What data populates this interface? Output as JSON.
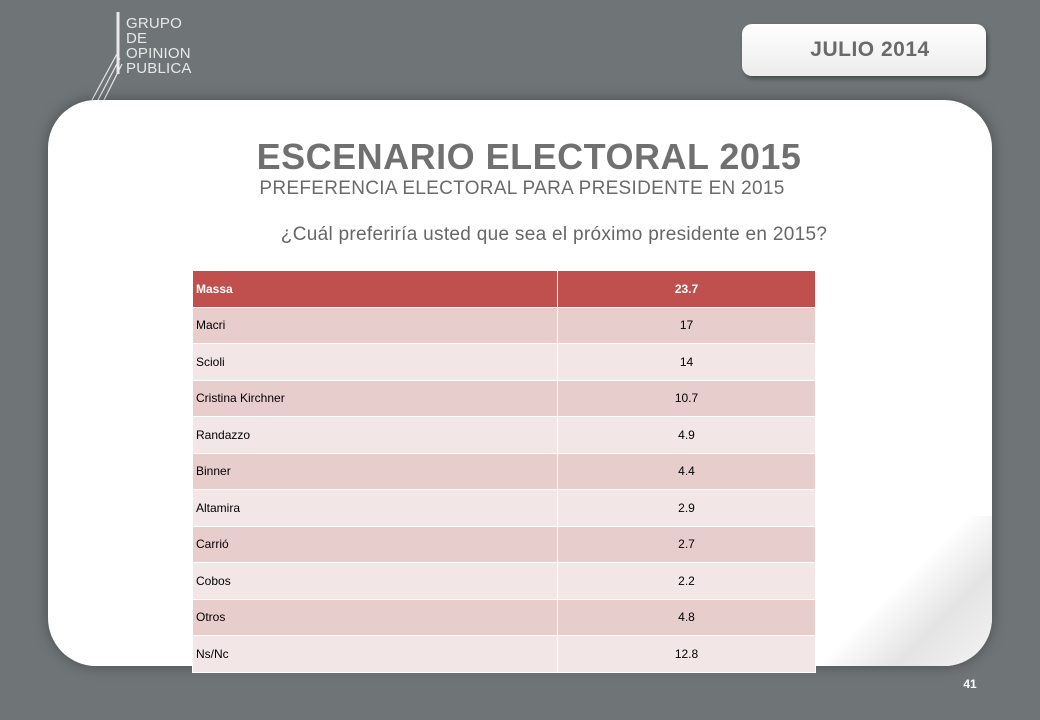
{
  "logo": {
    "lines": [
      "GRUPO",
      "DE",
      "OPINION",
      "PUBLICA"
    ]
  },
  "date_badge": "JULIO  2014",
  "title": "ESCENARIO ELECTORAL 2015",
  "subtitle": "PREFERENCIA ELECTORAL PARA PRESIDENTE EN 2015",
  "question": "¿Cuál preferiría usted que sea el próximo presidente en 2015?",
  "colors": {
    "header": "#c0504d",
    "row_odd": "#e8cdcd",
    "row_even": "#f2e6e6",
    "background": "#6f7577"
  },
  "table": {
    "rows": [
      {
        "name": "Massa",
        "value": "23.7"
      },
      {
        "name": "Macri",
        "value": "17"
      },
      {
        "name": "Scioli",
        "value": "14"
      },
      {
        "name": "Cristina Kirchner",
        "value": "10.7"
      },
      {
        "name": "Randazzo",
        "value": "4.9"
      },
      {
        "name": "Binner",
        "value": "4.4"
      },
      {
        "name": "Altamira",
        "value": "2.9"
      },
      {
        "name": "Carrió",
        "value": "2.7"
      },
      {
        "name": "Cobos",
        "value": "2.2"
      },
      {
        "name": "Otros",
        "value": "4.8"
      },
      {
        "name": "Ns/Nc",
        "value": "12.8"
      }
    ]
  },
  "page_number": "41"
}
